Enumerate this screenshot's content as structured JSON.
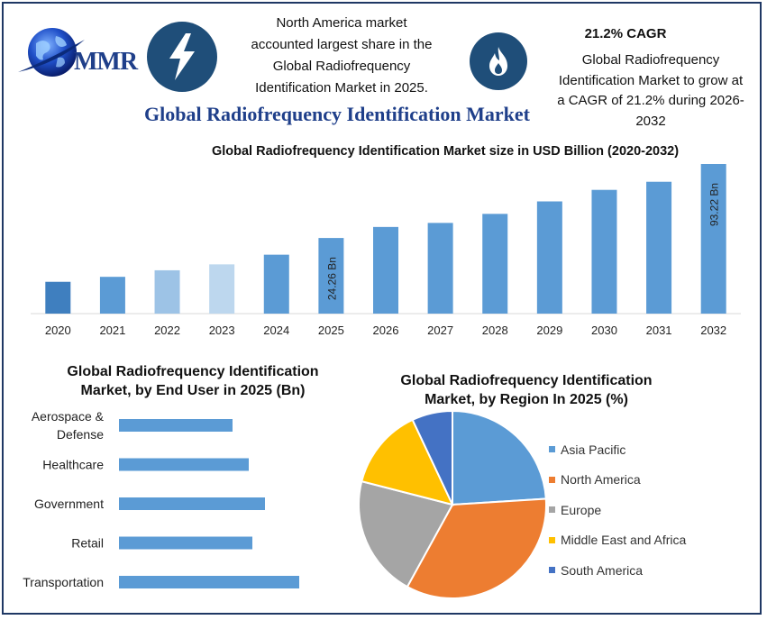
{
  "header": {
    "logo_text": "MMR",
    "north_america_text": [
      "North America market",
      "accounted largest share in the",
      "Global Radiofrequency",
      "Identification Market in 2025."
    ],
    "cagr_title": "21.2% CAGR",
    "cagr_text": [
      "Global Radiofrequency",
      "Identification Market to grow at",
      "a CAGR of 21.2% during 2026-",
      "2032"
    ],
    "main_title": "Global Radiofrequency Identification Market"
  },
  "icons": {
    "logo": "globe-logo-icon",
    "bolt": "lightning-bolt-icon",
    "flame": "flame-icon",
    "circle_color": "#1f4e79"
  },
  "chart_data": [
    {
      "type": "bar",
      "title": "Global Radiofrequency Identification Market size in USD Billion (2020-2032)",
      "categories": [
        "2020",
        "2021",
        "2022",
        "2023",
        "2024",
        "2025",
        "2026",
        "2027",
        "2028",
        "2029",
        "2030",
        "2031",
        "2032"
      ],
      "values": [
        10.2,
        11.8,
        13.9,
        15.8,
        18.9,
        24.26,
        27.8,
        29.1,
        32.0,
        36.0,
        39.7,
        42.3,
        93.22
      ],
      "display_note": "2032 bar drawn truncated at top of plot in original",
      "colors": [
        "#3f7fbf",
        "#5b9bd5",
        "#9dc3e6",
        "#bdd7ee",
        "#5b9bd5",
        "#5b9bd5",
        "#5b9bd5",
        "#5b9bd5",
        "#5b9bd5",
        "#5b9bd5",
        "#5b9bd5",
        "#5b9bd5",
        "#5b9bd5"
      ],
      "data_labels": {
        "2025": "24.26 Bn",
        "2032": "93.22 Bn"
      },
      "grid": false,
      "ylabel": "",
      "xlabel": ""
    },
    {
      "type": "bar",
      "orientation": "horizontal",
      "title": [
        "Global Radiofrequency Identification",
        "Market, by End User in 2025 (Bn)"
      ],
      "categories": [
        "Aerospace & Defense",
        "Healthcare",
        "Government",
        "Retail",
        "Transportation"
      ],
      "category_lines": [
        [
          "Aerospace &",
          "Defense"
        ],
        [
          "Healthcare"
        ],
        [
          "Government"
        ],
        [
          "Retail"
        ],
        [
          "Transportation"
        ]
      ],
      "values": [
        6.3,
        7.2,
        8.1,
        7.4,
        10.0
      ],
      "color": "#5b9bd5"
    },
    {
      "type": "pie",
      "title": [
        "Global Radiofrequency Identification",
        "Market, by Region In 2025 (%)"
      ],
      "labels": [
        "Asia Pacific",
        "North America",
        "Europe",
        "Middle East and Africa",
        "South America"
      ],
      "values": [
        24,
        34,
        21,
        14,
        7
      ],
      "colors": [
        "#5b9bd5",
        "#ed7d31",
        "#a5a5a5",
        "#ffc000",
        "#4472c4"
      ],
      "legend_position": "right"
    }
  ]
}
